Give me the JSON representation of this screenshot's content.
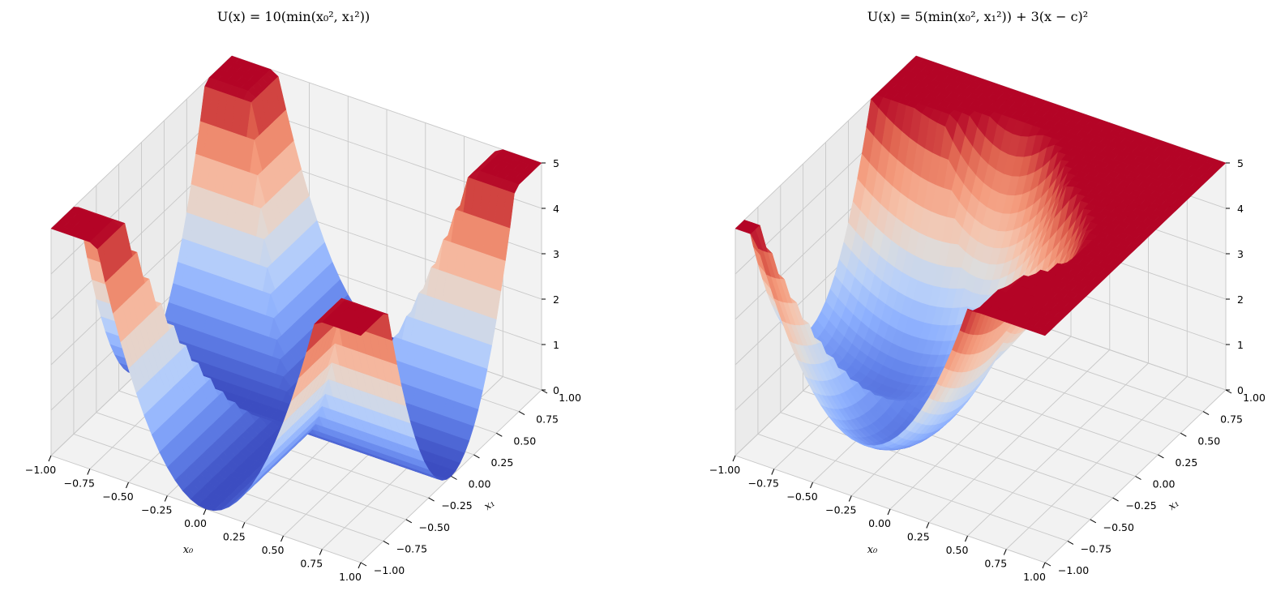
{
  "chart_data": [
    {
      "type": "surface3d",
      "title": "U(x) = 10(min(x₀², x₁²))",
      "xlabel": "x₀",
      "ylabel": "x₁",
      "zlabel": "",
      "xlim": [
        -1.0,
        1.0
      ],
      "ylim": [
        -1.0,
        1.0
      ],
      "zlim": [
        0,
        5
      ],
      "xticks": [
        "−1.00",
        "−0.75",
        "−0.50",
        "−0.25",
        "0.00",
        "0.25",
        "0.50",
        "0.75",
        "1.00"
      ],
      "yticks": [
        "−1.00",
        "−0.75",
        "−0.50",
        "−0.25",
        "0.00",
        "0.25",
        "0.50",
        "0.75",
        "1.00"
      ],
      "zticks": [
        "0",
        "1",
        "2",
        "3",
        "4",
        "5"
      ],
      "function": {
        "weight_min": 10,
        "weight_quad": 0,
        "center": 0
      },
      "colormap": "coolwarm",
      "grid": true
    },
    {
      "type": "surface3d",
      "title": "U(x) = 5(min(x₀², x₁²)) + 3(x − c)²",
      "xlabel": "x₀",
      "ylabel": "x₁",
      "zlabel": "",
      "xlim": [
        -1.0,
        1.0
      ],
      "ylim": [
        -1.0,
        1.0
      ],
      "zlim": [
        0,
        5
      ],
      "xticks": [
        "−1.00",
        "−0.75",
        "−0.50",
        "−0.25",
        "0.00",
        "0.25",
        "0.50",
        "0.75",
        "1.00"
      ],
      "yticks": [
        "−1.00",
        "−0.75",
        "−0.50",
        "−0.25",
        "0.00",
        "0.25",
        "0.50",
        "0.75",
        "1.00"
      ],
      "zticks": [
        "0",
        "1",
        "2",
        "3",
        "4",
        "5"
      ],
      "function": {
        "weight_min": 5,
        "weight_quad": 3,
        "center": -0.5
      },
      "colormap": "coolwarm",
      "grid": true
    }
  ]
}
